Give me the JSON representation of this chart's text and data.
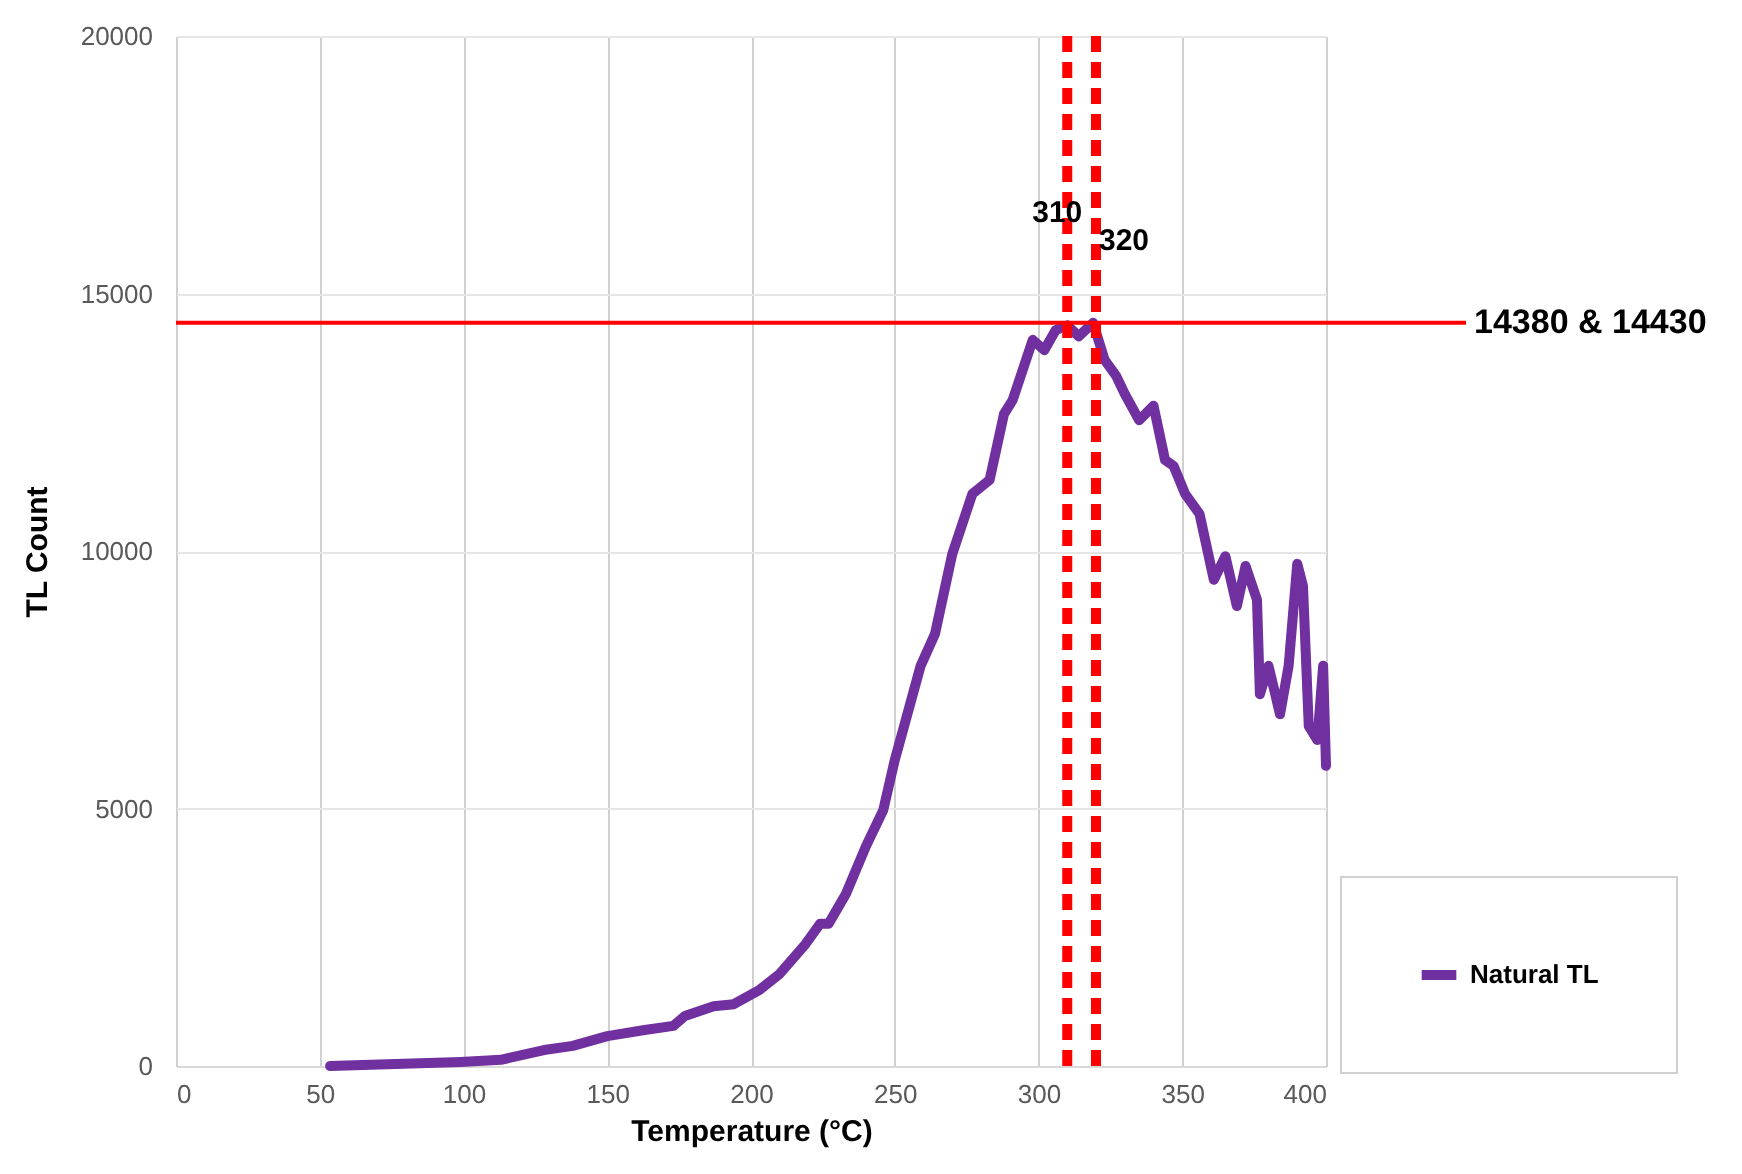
{
  "chart_data": {
    "type": "line",
    "xlabel": "Temperature (°C)",
    "ylabel": "TL Count",
    "xlim": [
      0,
      400
    ],
    "xticks": [
      0,
      50,
      100,
      150,
      200,
      250,
      300,
      350,
      400
    ],
    "ylim": [
      0,
      20000
    ],
    "yticks": [
      0,
      5000,
      10000,
      15000,
      20000
    ],
    "grid": true,
    "legend": "right",
    "line_style": "solid",
    "marker": "none",
    "series": [
      {
        "name": "Natural TL",
        "color": "#7030a0",
        "x": [
          53.6,
          99,
          113,
          128,
          138,
          150,
          163,
          173,
          177,
          187,
          194,
          203,
          210,
          219,
          224,
          227,
          233,
          240,
          246,
          250,
          259,
          264,
          270,
          277,
          283,
          288,
          291,
          298,
          302,
          306,
          310,
          314,
          319,
          323,
          327,
          330,
          335,
          340,
          344,
          347,
          351,
          356,
          361,
          365,
          369,
          372,
          376,
          377,
          380,
          384,
          387,
          390,
          392,
          394,
          397,
          399,
          400
        ],
        "values": [
          0,
          80,
          120,
          310,
          390,
          580,
          700,
          780,
          970,
          1160,
          1200,
          1480,
          1790,
          2370,
          2760,
          2760,
          3340,
          4270,
          4970,
          5940,
          7770,
          8390,
          9940,
          11110,
          11380,
          12660,
          12930,
          14100,
          13900,
          14290,
          14380,
          14170,
          14430,
          13710,
          13400,
          13050,
          12540,
          12820,
          11770,
          11650,
          11110,
          10720,
          9440,
          9900,
          8930,
          9710,
          9050,
          7220,
          7770,
          6830,
          7770,
          9750,
          9320,
          6600,
          6330,
          7770,
          5830
        ]
      }
    ],
    "ref_lines": [
      {
        "axis": "y",
        "value": 14430,
        "label": "14380 & 14430",
        "color": "#ff0000",
        "line_style": "solid"
      },
      {
        "axis": "x",
        "value": 310,
        "label": "310",
        "color": "#ff0000",
        "line_style": "dashed"
      },
      {
        "axis": "x",
        "value": 320,
        "label": "320",
        "color": "#ff0000",
        "line_style": "dashed"
      }
    ]
  }
}
